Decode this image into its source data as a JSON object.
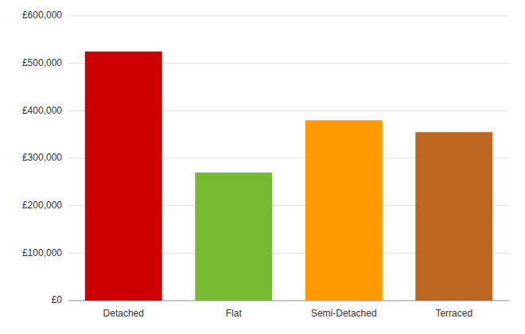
{
  "chart_data": {
    "type": "bar",
    "categories": [
      "Detached",
      "Flat",
      "Semi-Detached",
      "Terraced"
    ],
    "values": [
      525000,
      270000,
      380000,
      355000
    ],
    "colors": [
      "#cc0000",
      "#77bb33",
      "#ff9900",
      "#bb6622"
    ],
    "ylim": [
      0,
      600000
    ],
    "yticks": [
      {
        "value": 0,
        "label": "£0"
      },
      {
        "value": 100000,
        "label": "£100,000"
      },
      {
        "value": 200000,
        "label": "£200,000"
      },
      {
        "value": 300000,
        "label": "£300,000"
      },
      {
        "value": 400000,
        "label": "£400,000"
      },
      {
        "value": 500000,
        "label": "£500,000"
      },
      {
        "value": 600000,
        "label": "£600,000"
      }
    ],
    "grid": true
  }
}
